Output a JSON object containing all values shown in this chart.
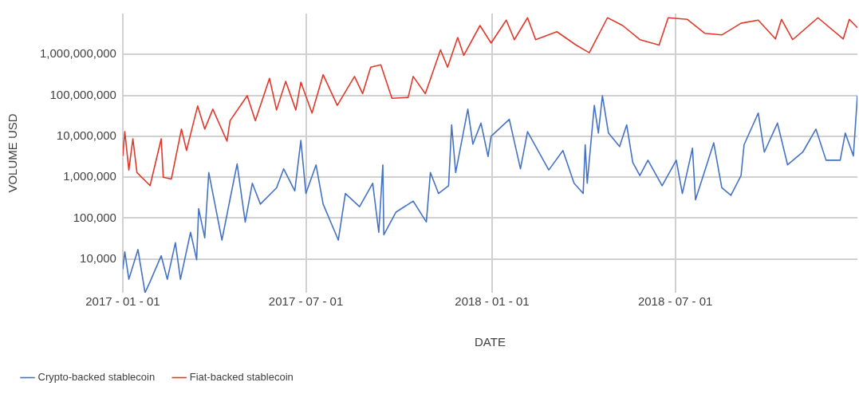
{
  "chart_data": {
    "type": "line",
    "xlabel": "DATE",
    "ylabel": "VOLUME USD",
    "xlim": [
      "2017-01-01",
      "2018-12-28"
    ],
    "xticks": [
      {
        "value": "2017-01-01",
        "label": "2017 - 01 - 01"
      },
      {
        "value": "2017-07-01",
        "label": "2017 - 07 - 01"
      },
      {
        "value": "2018-01-01",
        "label": "2018 - 01 - 01"
      },
      {
        "value": "2018-07-01",
        "label": "2018 - 07 - 01"
      }
    ],
    "ylim": [
      1500,
      10000000000
    ],
    "yticks": [
      {
        "value": 10000,
        "label": "10,000"
      },
      {
        "value": 100000,
        "label": "100,000"
      },
      {
        "value": 1000000,
        "label": "1,000,000"
      },
      {
        "value": 10000000,
        "label": "10,000,000"
      },
      {
        "value": 100000000,
        "label": "100,000,000"
      },
      {
        "value": 1000000000,
        "label": "1,000,000,000"
      }
    ],
    "log": "y",
    "grid": true,
    "legend": "bottom",
    "marker": "none",
    "line_style": "solid",
    "series": [
      {
        "name": "Crypto-backed stablecoin",
        "color": "#4472c4",
        "x": [
          "2017-01-01",
          "2017-01-03",
          "2017-01-07",
          "2017-01-16",
          "2017-01-23",
          "2017-01-28",
          "2017-02-08",
          "2017-02-14",
          "2017-02-22",
          "2017-02-27",
          "2017-03-09",
          "2017-03-15",
          "2017-03-17",
          "2017-03-23",
          "2017-03-27",
          "2017-04-09",
          "2017-04-17",
          "2017-04-24",
          "2017-05-02",
          "2017-05-09",
          "2017-05-17",
          "2017-06-02",
          "2017-06-09",
          "2017-06-20",
          "2017-06-26",
          "2017-07-01",
          "2017-07-11",
          "2017-07-18",
          "2017-08-02",
          "2017-08-09",
          "2017-08-23",
          "2017-09-05",
          "2017-09-11",
          "2017-09-15",
          "2017-09-16",
          "2017-09-28",
          "2017-10-15",
          "2017-10-28",
          "2017-11-01",
          "2017-11-09",
          "2017-11-19",
          "2017-11-22",
          "2017-11-26",
          "2017-12-08",
          "2017-12-13",
          "2017-12-21",
          "2017-12-28",
          "2017-12-31",
          "2018-01-18",
          "2018-01-29",
          "2018-02-05",
          "2018-02-26",
          "2018-03-12",
          "2018-03-23",
          "2018-04-01",
          "2018-04-03",
          "2018-04-05",
          "2018-04-12",
          "2018-04-16",
          "2018-04-20",
          "2018-04-26",
          "2018-05-07",
          "2018-05-14",
          "2018-05-20",
          "2018-05-27",
          "2018-06-04",
          "2018-06-18",
          "2018-07-02",
          "2018-07-08",
          "2018-07-18",
          "2018-07-21",
          "2018-08-08",
          "2018-08-16",
          "2018-08-25",
          "2018-09-04",
          "2018-09-07",
          "2018-09-21",
          "2018-09-27",
          "2018-10-10",
          "2018-10-20",
          "2018-11-04",
          "2018-11-17",
          "2018-11-27",
          "2018-12-11",
          "2018-12-16",
          "2018-12-24",
          "2018-12-28"
        ],
        "values": [
          5600,
          15000,
          3200,
          17000,
          1500,
          2800,
          12000,
          3200,
          25000,
          3200,
          45000,
          9600,
          170000,
          33000,
          1300000,
          29000,
          290000,
          2100000,
          80000,
          710000,
          220000,
          550000,
          1600000,
          460000,
          7900000,
          400000,
          2000000,
          220000,
          29000,
          400000,
          190000,
          710000,
          45000,
          2000000,
          39000,
          140000,
          260000,
          80000,
          1300000,
          400000,
          620000,
          19000000,
          1300000,
          46000000,
          6400000,
          21000000,
          3200000,
          10000000,
          26000000,
          1600000,
          13000000,
          1500000,
          4500000,
          710000,
          400000,
          6200000,
          710000,
          57000000,
          12000000,
          98000000,
          12000000,
          5600000,
          19000000,
          2300000,
          1100000,
          2600000,
          620000,
          2600000,
          400000,
          5100000,
          280000,
          6900000,
          550000,
          360000,
          1100000,
          6200000,
          37000000,
          4100000,
          21000000,
          2000000,
          4100000,
          15000000,
          2600000,
          2600000,
          12000000,
          3300000,
          98000000
        ]
      },
      {
        "name": "Fiat-backed stablecoin",
        "color": "#e0392b",
        "x": [
          "2017-01-01",
          "2017-01-03",
          "2017-01-07",
          "2017-01-11",
          "2017-01-15",
          "2017-01-28",
          "2017-02-08",
          "2017-02-10",
          "2017-02-18",
          "2017-02-28",
          "2017-03-05",
          "2017-03-16",
          "2017-03-23",
          "2017-03-31",
          "2017-04-14",
          "2017-04-17",
          "2017-05-04",
          "2017-05-12",
          "2017-05-26",
          "2017-06-02",
          "2017-06-11",
          "2017-06-21",
          "2017-06-26",
          "2017-07-07",
          "2017-07-18",
          "2017-08-01",
          "2017-08-18",
          "2017-08-26",
          "2017-09-03",
          "2017-09-13",
          "2017-09-24",
          "2017-10-10",
          "2017-10-15",
          "2017-10-27",
          "2017-11-11",
          "2017-11-18",
          "2017-11-28",
          "2017-12-04",
          "2017-12-20",
          "2017-12-31",
          "2018-01-15",
          "2018-01-23",
          "2018-02-05",
          "2018-02-13",
          "2018-03-06",
          "2018-03-25",
          "2018-04-07",
          "2018-04-25",
          "2018-05-10",
          "2018-05-27",
          "2018-06-15",
          "2018-06-24",
          "2018-07-13",
          "2018-07-30",
          "2018-08-16",
          "2018-09-04",
          "2018-09-21",
          "2018-10-08",
          "2018-10-14",
          "2018-10-25",
          "2018-11-19",
          "2018-12-14",
          "2018-12-20",
          "2018-12-28"
        ],
        "values": [
          3300000,
          13000000,
          1500000,
          8700000,
          1300000,
          620000,
          8700000,
          1000000,
          900000,
          15000000,
          4500000,
          55000000,
          15000000,
          46000000,
          7600000,
          24000000,
          98000000,
          24000000,
          260000000,
          44000000,
          220000000,
          44000000,
          210000000,
          37000000,
          320000000,
          57000000,
          290000000,
          110000000,
          490000000,
          560000000,
          85000000,
          89000000,
          290000000,
          110000000,
          1300000000,
          490000000,
          2600000000,
          950000000,
          5100000000,
          1900000000,
          6900000000,
          2300000000,
          7900000000,
          2300000000,
          3600000000,
          1700000000,
          1100000000,
          7900000000,
          5100000000,
          2300000000,
          1700000000,
          7900000000,
          7200000000,
          3300000000,
          3000000000,
          5800000000,
          6900000000,
          2400000000,
          7200000000,
          2300000000,
          7900000000,
          2400000000,
          7200000000,
          4500000000
        ]
      }
    ]
  }
}
